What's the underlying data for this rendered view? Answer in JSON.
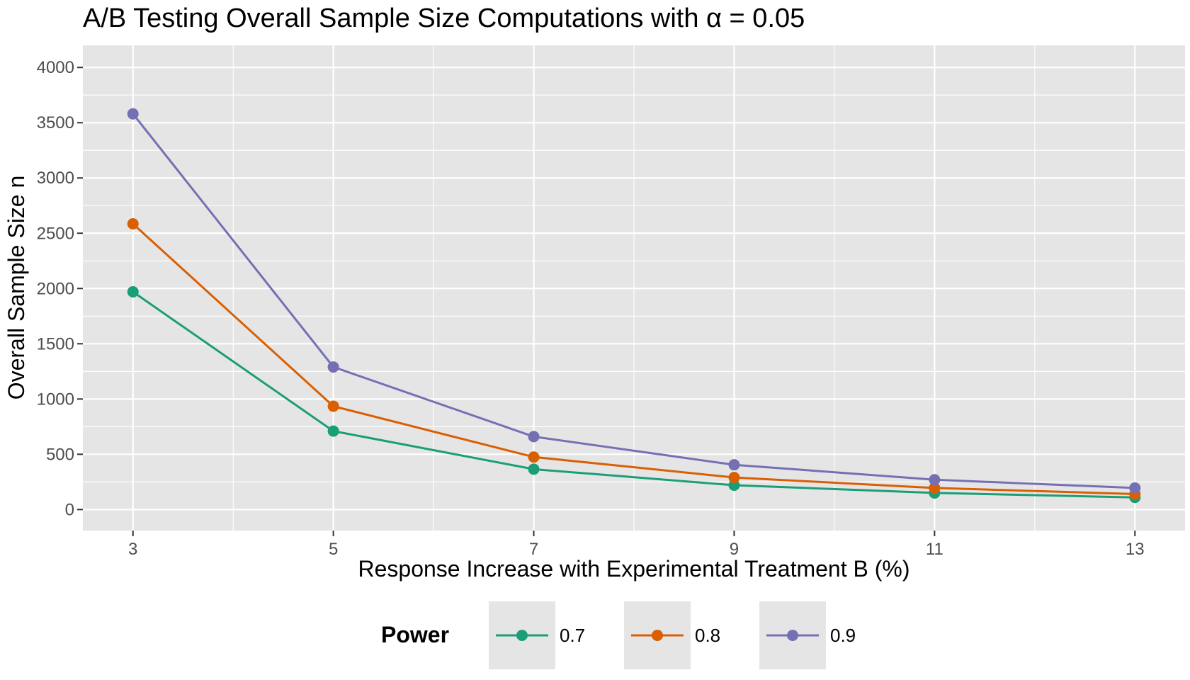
{
  "chart_data": {
    "type": "line",
    "title": "A/B Testing Overall Sample Size Computations with α = 0.05",
    "xlabel": "Response Increase with Experimental Treatment B (%)",
    "ylabel": "Overall Sample Size n",
    "x": [
      3,
      5,
      7,
      9,
      11,
      13
    ],
    "xticks": [
      3,
      5,
      7,
      9,
      11,
      13
    ],
    "xlim": [
      2.5,
      13.5
    ],
    "yticks": [
      0,
      500,
      1000,
      1500,
      2000,
      2500,
      3000,
      3500,
      4000
    ],
    "ylim": [
      -190,
      4200
    ],
    "grid": true,
    "legend": {
      "title": "Power",
      "position": "bottom"
    },
    "series": [
      {
        "name": "0.7",
        "color": "#1b9e77",
        "values": [
          1970,
          710,
          365,
          220,
          150,
          110
        ]
      },
      {
        "name": "0.8",
        "color": "#d95f02",
        "values": [
          2585,
          935,
          475,
          290,
          195,
          140
        ]
      },
      {
        "name": "0.9",
        "color": "#7570b3",
        "values": [
          3580,
          1290,
          660,
          405,
          270,
          195
        ]
      }
    ]
  }
}
